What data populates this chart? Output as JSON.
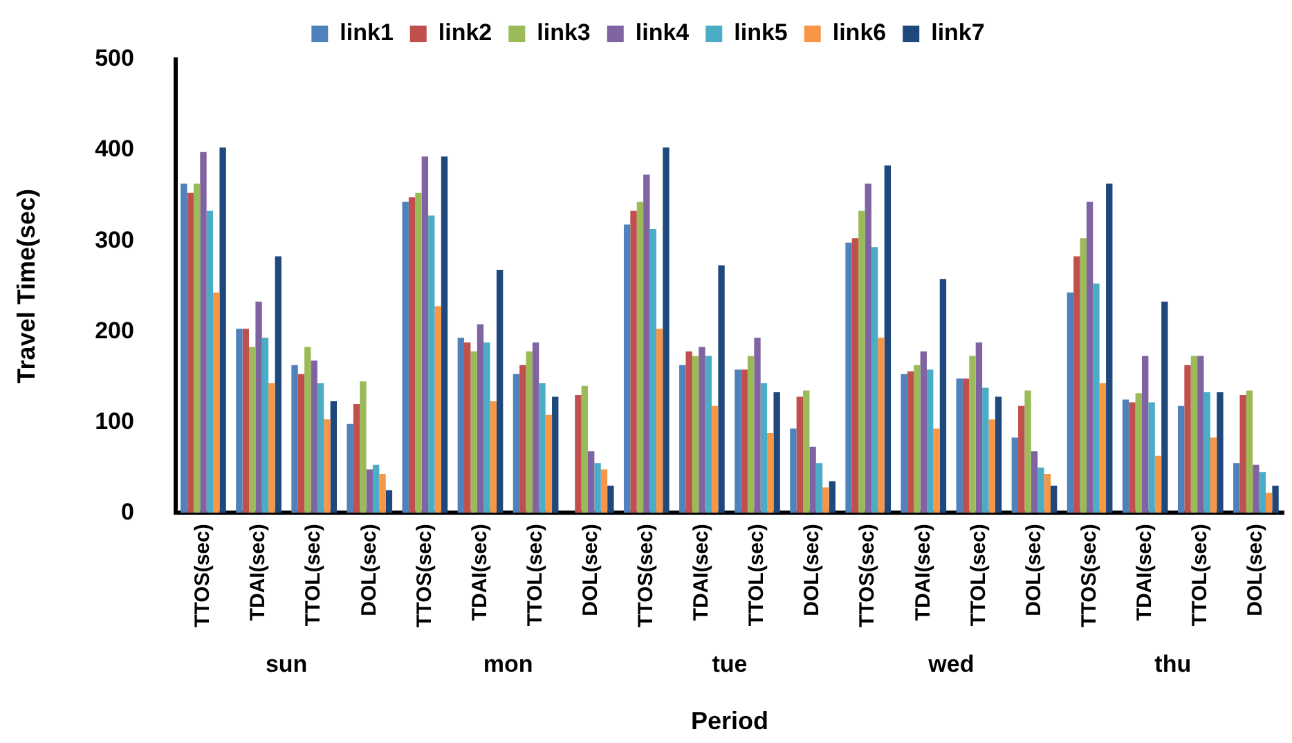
{
  "chart_data": {
    "type": "bar",
    "xlabel": "Period",
    "ylabel": "Travel Time(sec)",
    "categories": [
      "TTOS(sec)",
      "TDAI(sec)",
      "TTOL(sec)",
      "DOL(sec)",
      "TTOS(sec)",
      "TDAI(sec)",
      "TTOL(sec)",
      "DOL(sec)",
      "TTOS(sec)",
      "TDAI(sec)",
      "TTOL(sec)",
      "DOL(sec)",
      "TTOS(sec)",
      "TDAI(sec)",
      "TTOL(sec)",
      "DOL(sec)",
      "TTOS(sec)",
      "TDAI(sec)",
      "TTOL(sec)",
      "DOL(sec)"
    ],
    "annotations": [
      "sun",
      "mon",
      "tue",
      "wed",
      "thu"
    ],
    "series": [
      {
        "name": "link1",
        "color": "#4f81bd",
        "values": [
          363,
          203,
          163,
          98,
          343,
          193,
          153,
          0,
          318,
          163,
          158,
          93,
          298,
          153,
          148,
          83,
          243,
          125,
          118,
          55
        ]
      },
      {
        "name": "link2",
        "color": "#c0504d",
        "values": [
          353,
          203,
          153,
          120,
          348,
          188,
          163,
          130,
          333,
          178,
          158,
          128,
          303,
          156,
          148,
          118,
          283,
          122,
          163,
          130
        ]
      },
      {
        "name": "link3",
        "color": "#9bbb59",
        "values": [
          363,
          183,
          183,
          145,
          353,
          178,
          178,
          140,
          343,
          173,
          173,
          135,
          333,
          163,
          173,
          135,
          303,
          132,
          173,
          135
        ]
      },
      {
        "name": "link4",
        "color": "#8064a2",
        "values": [
          398,
          233,
          168,
          48,
          393,
          208,
          188,
          68,
          373,
          183,
          193,
          73,
          363,
          178,
          188,
          68,
          343,
          173,
          173,
          53
        ]
      },
      {
        "name": "link5",
        "color": "#4bacc6",
        "values": [
          333,
          193,
          143,
          53,
          328,
          188,
          143,
          55,
          313,
          173,
          143,
          55,
          293,
          158,
          138,
          50,
          253,
          122,
          133,
          45
        ]
      },
      {
        "name": "link6",
        "color": "#f79646",
        "values": [
          243,
          143,
          103,
          43,
          228,
          123,
          108,
          48,
          203,
          118,
          88,
          28,
          193,
          93,
          103,
          43,
          143,
          63,
          83,
          22
        ]
      },
      {
        "name": "link7",
        "color": "#1f497d",
        "values": [
          403,
          283,
          123,
          25,
          393,
          268,
          128,
          30,
          403,
          273,
          133,
          35,
          383,
          258,
          128,
          30,
          363,
          233,
          133,
          30
        ]
      }
    ],
    "ylim": [
      0,
      500
    ],
    "yticks": [
      0,
      100,
      200,
      300,
      400,
      500
    ],
    "grid": false,
    "legend": "top"
  }
}
